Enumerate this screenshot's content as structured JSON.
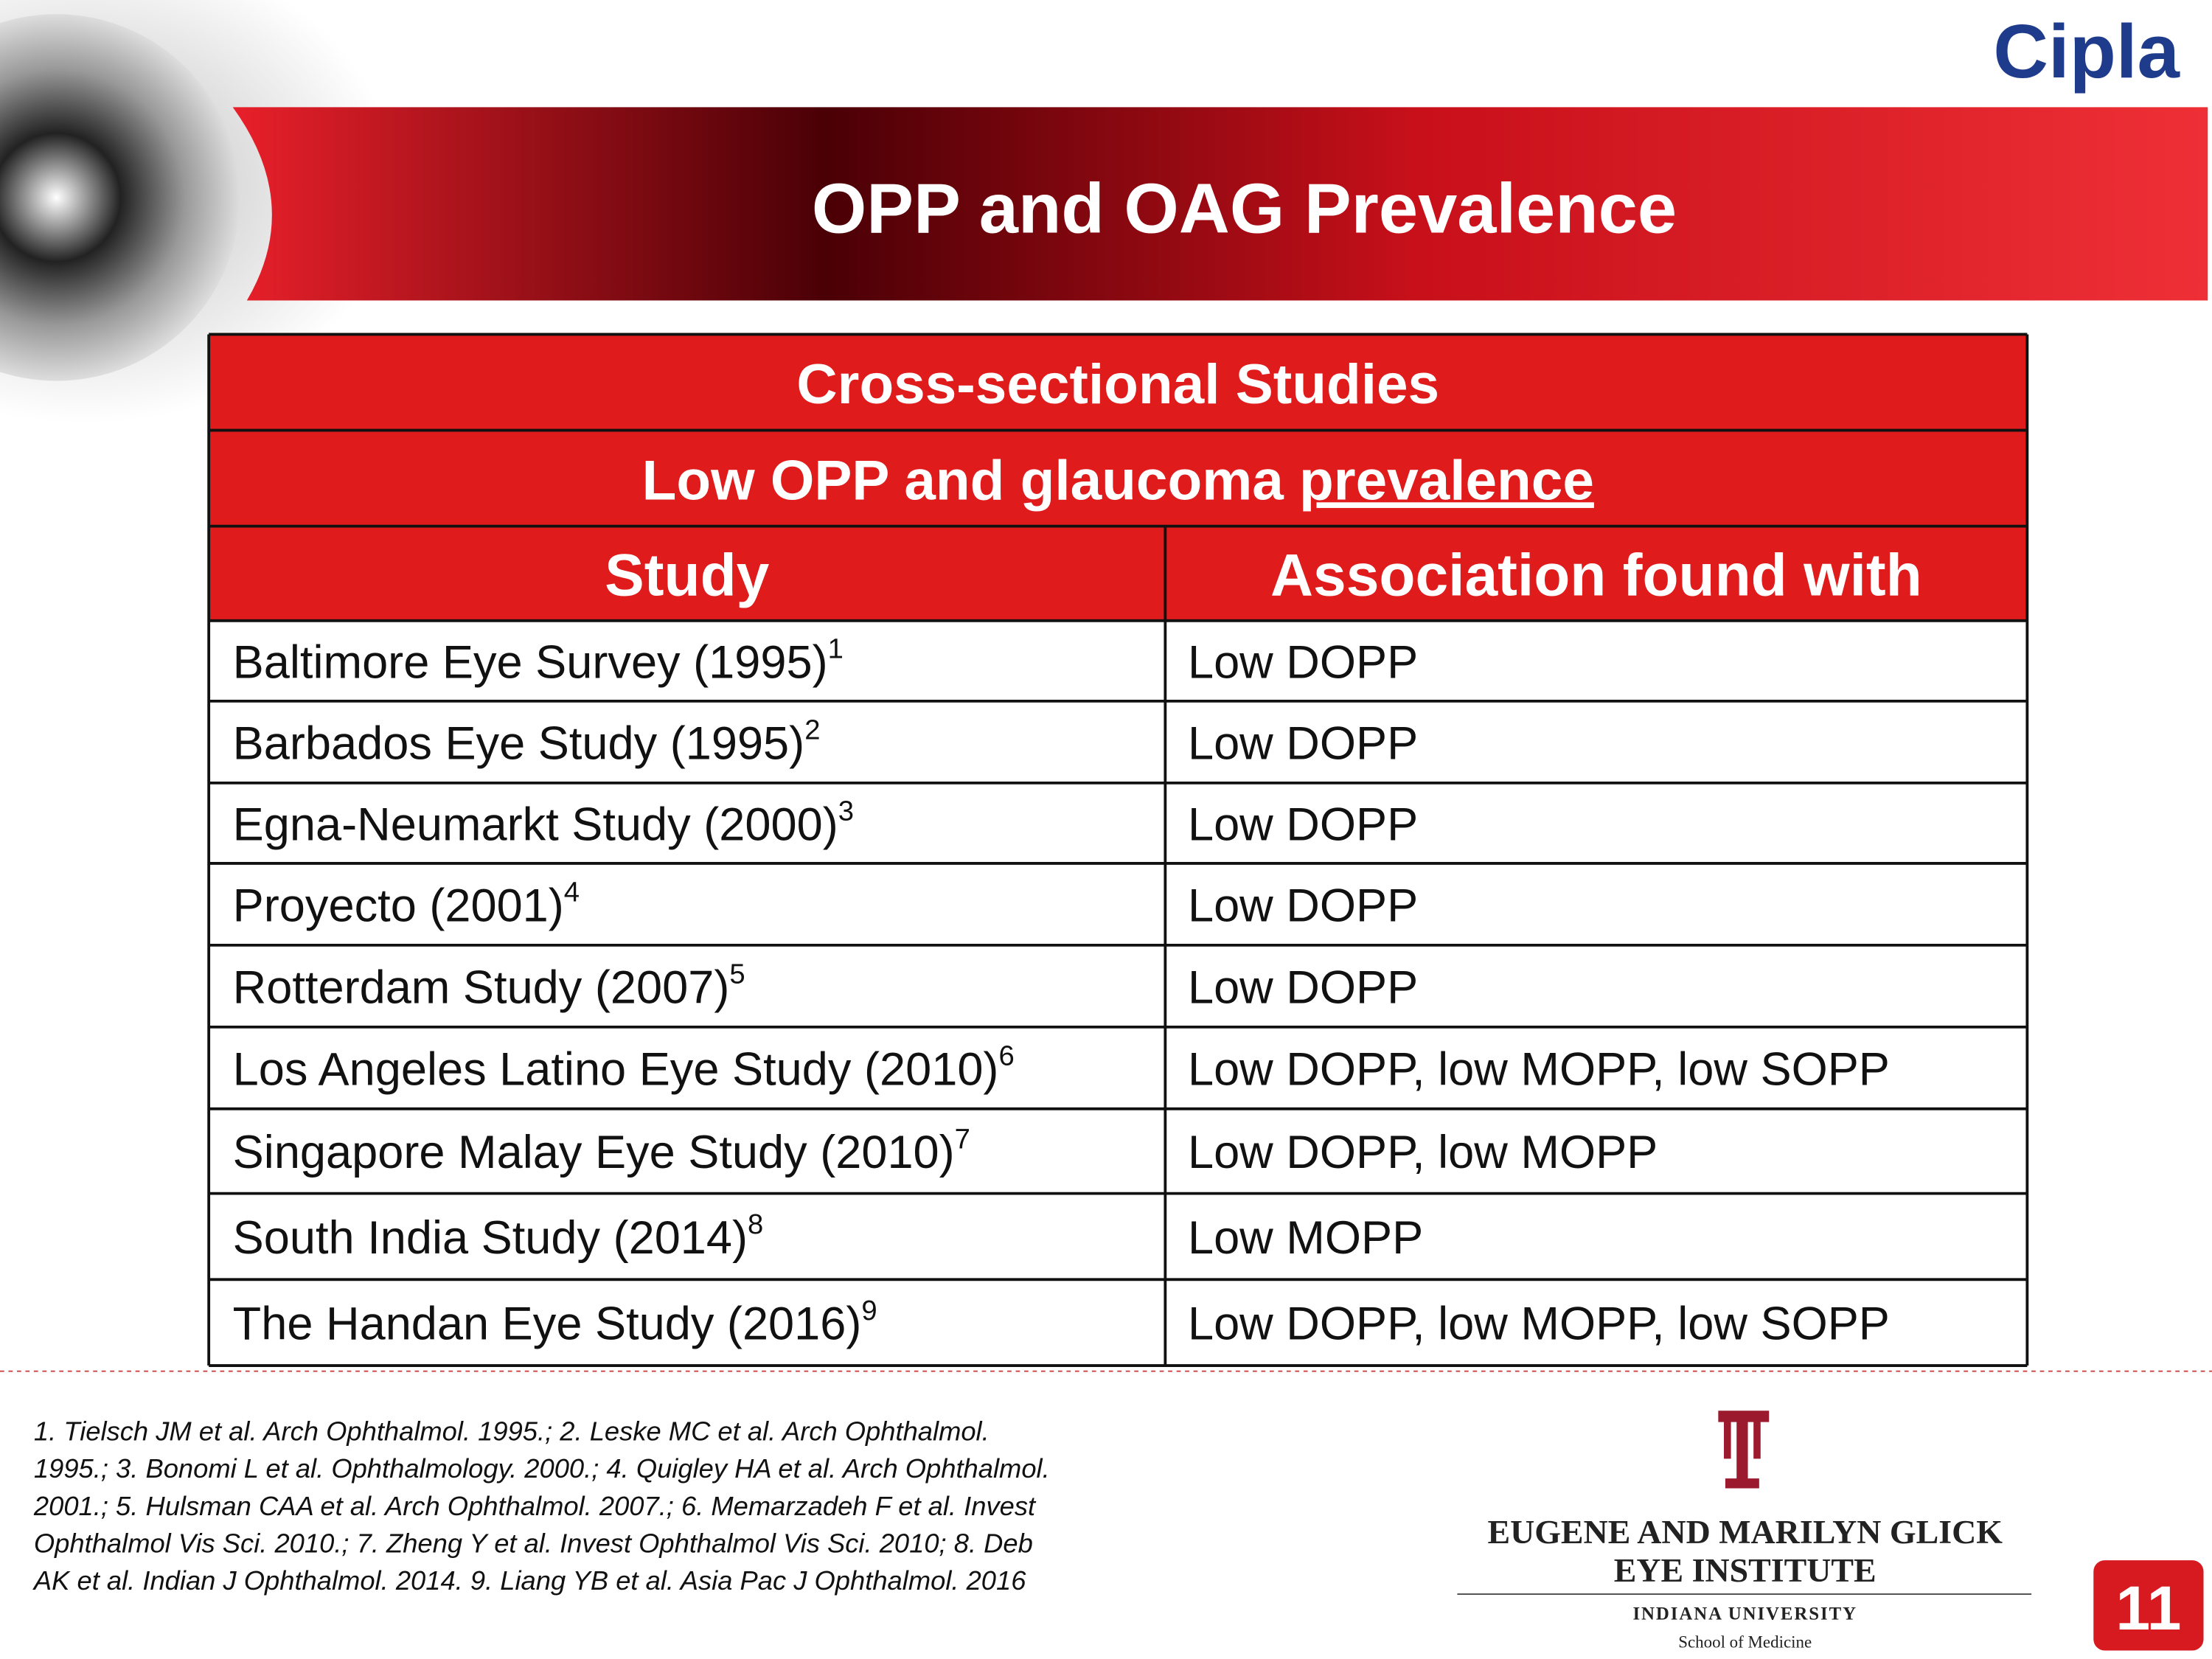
{
  "header": {
    "logo": "Cipla",
    "title": "OPP and OAG Prevalence"
  },
  "table": {
    "caption": "Cross-sectional Studies",
    "subcaption": {
      "text": "Low OPP and glaucoma",
      "underlined": "prevalence"
    },
    "columns": [
      "Study",
      "Association found with"
    ],
    "rows": [
      {
        "study": "Baltimore Eye Survey (1995)",
        "ref": "1",
        "association": "Low DOPP"
      },
      {
        "study": "Barbados Eye Study (1995)",
        "ref": "2",
        "association": "Low DOPP"
      },
      {
        "study": "Egna-Neumarkt Study (2000)",
        "ref": "3",
        "association": "Low DOPP"
      },
      {
        "study": "Proyecto (2001)",
        "ref": "4",
        "association": "Low DOPP"
      },
      {
        "study": "Rotterdam Study (2007)",
        "ref": "5",
        "association": "Low DOPP"
      },
      {
        "study": "Los Angeles Latino Eye Study (2010)",
        "ref": "6",
        "association": "Low DOPP, low MOPP, low SOPP"
      },
      {
        "study": "Singapore Malay Eye Study (2010)",
        "ref": "7",
        "association": "Low DOPP, low MOPP"
      },
      {
        "study": "South India Study (2014)",
        "ref": "8",
        "association": "Low MOPP"
      },
      {
        "study": "The Handan Eye Study (2016)",
        "ref": "9",
        "association": "Low DOPP, low MOPP, low SOPP"
      }
    ]
  },
  "footnotes": [
    "1. Tielsch JM et al. Arch Ophthalmol. 1995.; 2. Leske MC et al.  Arch Ophthalmol.",
    "1995.; 3.  Bonomi L et al. Ophthalmology. 2000.; 4. Quigley HA et al. Arch Ophthalmol.",
    "2001.; 5.  Hulsman CAA et al. Arch Ophthalmol. 2007.; 6. Memarzadeh F et al. Invest",
    "Ophthalmol Vis Sci. 2010.; 7. Zheng Y et al. Invest Ophthalmol Vis Sci. 2010; 8. Deb",
    "AK et al. Indian J Ophthalmol. 2014. 9. Liang YB et al. Asia Pac J Ophthalmol. 2016"
  ],
  "institute": {
    "line1": "EUGENE AND MARILYN GLICK",
    "line2": "EYE INSTITUTE",
    "line3": "INDIANA UNIVERSITY",
    "line4": "School of Medicine"
  },
  "page_number": "11"
}
